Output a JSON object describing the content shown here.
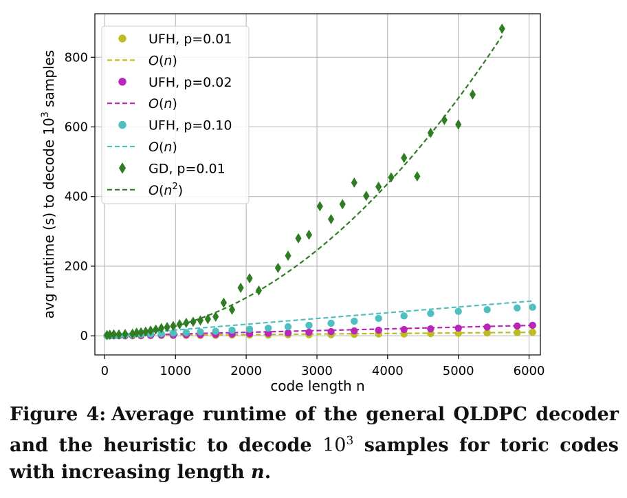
{
  "chart_data": {
    "type": "scatter",
    "xlabel": "code length n",
    "ylabel": "avg runtime (s) to decode 10",
    "ylabel_sup": "3",
    "ylabel_tail": " samples",
    "xlim": [
      -140,
      6160
    ],
    "ylim": [
      -55,
      925
    ],
    "xticks": [
      0,
      1000,
      2000,
      3000,
      4000,
      5000,
      6000
    ],
    "yticks": [
      0,
      200,
      400,
      600,
      800
    ],
    "grid": true,
    "legend_position": "top-left",
    "series": [
      {
        "name": "UFH, p=0.01",
        "marker": "circle",
        "color": "#bcbd22",
        "x": [
          32,
          72,
          128,
          200,
          288,
          392,
          512,
          648,
          800,
          968,
          1152,
          1352,
          1568,
          1800,
          2048,
          2312,
          2592,
          2888,
          3200,
          3528,
          3872,
          4232,
          4608,
          5000,
          5408,
          5832,
          6050
        ],
        "y": [
          0,
          0,
          0,
          0,
          0,
          0,
          0,
          1,
          1,
          1,
          1,
          1,
          1,
          2,
          2,
          2,
          3,
          3,
          3,
          4,
          5,
          5,
          6,
          7,
          8,
          9,
          10
        ]
      },
      {
        "name": "UFH, p=0.02",
        "marker": "circle",
        "color": "#b926b9",
        "x": [
          32,
          72,
          128,
          200,
          288,
          392,
          512,
          648,
          800,
          968,
          1152,
          1352,
          1568,
          1800,
          2048,
          2312,
          2592,
          2888,
          3200,
          3528,
          3872,
          4232,
          4608,
          5000,
          5408,
          5832,
          6050
        ],
        "y": [
          0,
          0,
          0,
          0,
          0,
          1,
          1,
          1,
          2,
          2,
          3,
          3,
          4,
          5,
          6,
          7,
          8,
          10,
          12,
          14,
          16,
          18,
          20,
          22,
          25,
          28,
          30
        ]
      },
      {
        "name": "UFH, p=0.10",
        "marker": "circle",
        "color": "#4fbfbf",
        "x": [
          32,
          72,
          128,
          200,
          288,
          392,
          512,
          648,
          800,
          968,
          1152,
          1352,
          1568,
          1800,
          2048,
          2312,
          2592,
          2888,
          3200,
          3528,
          3872,
          4232,
          4608,
          5000,
          5408,
          5832,
          6050
        ],
        "y": [
          0,
          0,
          1,
          1,
          2,
          3,
          4,
          5,
          6,
          8,
          9,
          11,
          13,
          16,
          19,
          22,
          26,
          30,
          36,
          42,
          50,
          57,
          64,
          70,
          75,
          80,
          82
        ]
      },
      {
        "name": "GD, p=0.01",
        "marker": "diamond",
        "color": "#2e7d22",
        "x": [
          32,
          72,
          128,
          200,
          288,
          392,
          450,
          512,
          578,
          648,
          722,
          800,
          882,
          968,
          1058,
          1152,
          1250,
          1352,
          1458,
          1568,
          1682,
          1800,
          1922,
          2048,
          2178,
          2450,
          2592,
          2738,
          2888,
          3042,
          3200,
          3362,
          3528,
          3698,
          3872,
          4050,
          4232,
          4418,
          4608,
          4802,
          5000,
          5202,
          5618
        ],
        "y": [
          2,
          3,
          4,
          4,
          5,
          6,
          9,
          10,
          12,
          15,
          18,
          22,
          25,
          28,
          33,
          37,
          40,
          44,
          48,
          55,
          95,
          75,
          138,
          165,
          130,
          195,
          230,
          280,
          290,
          372,
          335,
          378,
          440,
          402,
          428,
          455,
          511,
          458,
          583,
          620,
          607,
          693,
          882
        ]
      }
    ],
    "fits": [
      {
        "name": "O(n)",
        "fit_for": "UFH, p=0.01",
        "color": "#bcbd22",
        "x": [
          0,
          6050
        ],
        "y": [
          0,
          10
        ]
      },
      {
        "name": "O(n)",
        "fit_for": "UFH, p=0.02",
        "color": "#b926b9",
        "x": [
          0,
          6050
        ],
        "y": [
          0,
          30
        ]
      },
      {
        "name": "O(n)",
        "fit_for": "UFH, p=0.10",
        "color": "#4fbfbf",
        "x": [
          0,
          6050
        ],
        "y": [
          0,
          100
        ]
      },
      {
        "name": "O(n^2)",
        "fit_for": "GD, p=0.01",
        "color": "#2e7d22",
        "fit_x_max": 5618,
        "quadratic_coefficient": 2.73e-05
      }
    ],
    "legend": [
      {
        "kind": "marker",
        "marker": "circle",
        "color": "#bcbd22",
        "text": "UFH, p=0.01"
      },
      {
        "kind": "line",
        "color": "#bcbd22",
        "italic": "O",
        "rest": "(",
        "var": "n",
        "sup": "",
        "close": ")"
      },
      {
        "kind": "marker",
        "marker": "circle",
        "color": "#b926b9",
        "text": "UFH, p=0.02"
      },
      {
        "kind": "line",
        "color": "#b926b9",
        "italic": "O",
        "rest": "(",
        "var": "n",
        "sup": "",
        "close": ")"
      },
      {
        "kind": "marker",
        "marker": "circle",
        "color": "#4fbfbf",
        "text": "UFH, p=0.10"
      },
      {
        "kind": "line",
        "color": "#4fbfbf",
        "italic": "O",
        "rest": "(",
        "var": "n",
        "sup": "",
        "close": ")"
      },
      {
        "kind": "marker",
        "marker": "diamond",
        "color": "#2e7d22",
        "text": "GD, p=0.01"
      },
      {
        "kind": "line",
        "color": "#2e7d22",
        "italic": "O",
        "rest": "(",
        "var": "n",
        "sup": "2",
        "close": ")"
      }
    ]
  },
  "caption": {
    "label": "Figure 4:",
    "text_before": "Average runtime of the general QLDPC decoder and the heuristic to decode ",
    "math_base": "10",
    "math_sup": "3",
    "text_after": " samples for toric codes with increasing length ",
    "math_var": "n",
    "end": "."
  }
}
